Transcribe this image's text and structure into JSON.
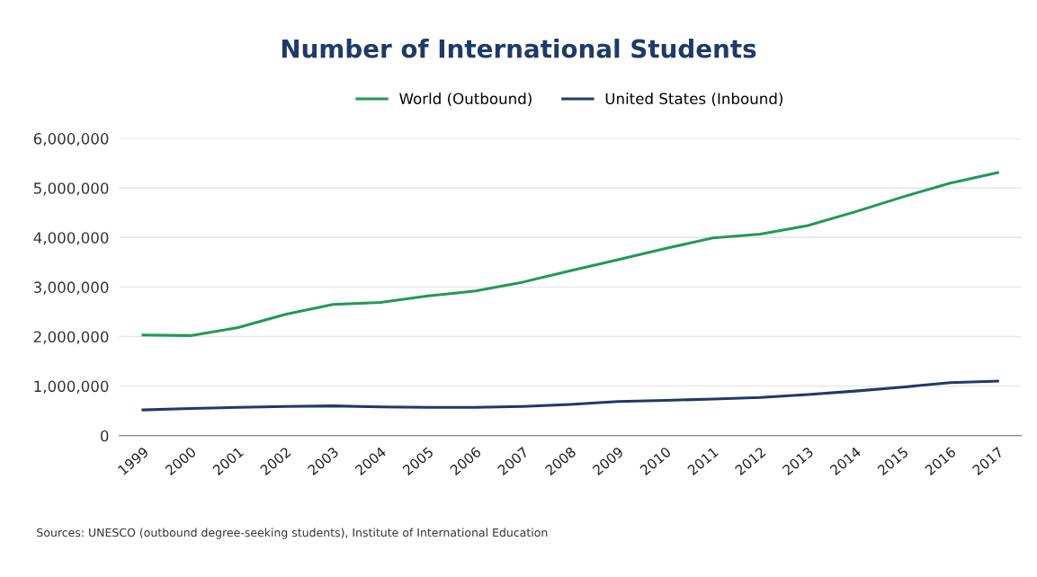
{
  "chart_data": {
    "type": "line",
    "title": "Number of International Students",
    "categories": [
      "1999",
      "2000",
      "2001",
      "2002",
      "2003",
      "2004",
      "2005",
      "2006",
      "2007",
      "2008",
      "2009",
      "2010",
      "2011",
      "2012",
      "2013",
      "2014",
      "2015",
      "2016",
      "2017"
    ],
    "series": [
      {
        "name": "World (Outbound)",
        "color": "#229954",
        "values": [
          2030000,
          2020000,
          2180000,
          2450000,
          2650000,
          2690000,
          2820000,
          2920000,
          3100000,
          3330000,
          3550000,
          3780000,
          3990000,
          4070000,
          4240000,
          4520000,
          4820000,
          5100000,
          5310000
        ]
      },
      {
        "name": "United States (Inbound)",
        "color": "#1f3a68",
        "values": [
          520000,
          550000,
          570000,
          590000,
          600000,
          580000,
          570000,
          570000,
          590000,
          630000,
          690000,
          710000,
          740000,
          770000,
          830000,
          900000,
          980000,
          1070000,
          1100000
        ]
      }
    ],
    "ylim": [
      0,
      6000000
    ],
    "yticks": [
      {
        "value": 0,
        "label": "0"
      },
      {
        "value": 1000000,
        "label": "1,000,000"
      },
      {
        "value": 2000000,
        "label": "2,000,000"
      },
      {
        "value": 3000000,
        "label": "3,000,000"
      },
      {
        "value": 4000000,
        "label": "4,000,000"
      },
      {
        "value": 5000000,
        "label": "5,000,000"
      },
      {
        "value": 6000000,
        "label": "6,000,000"
      }
    ],
    "grid": "y",
    "legend": "top",
    "marker": "none",
    "line_style": "solid",
    "annotations": [
      "Sources: UNESCO (outbound degree-seeking students), Institute of International Education"
    ]
  }
}
